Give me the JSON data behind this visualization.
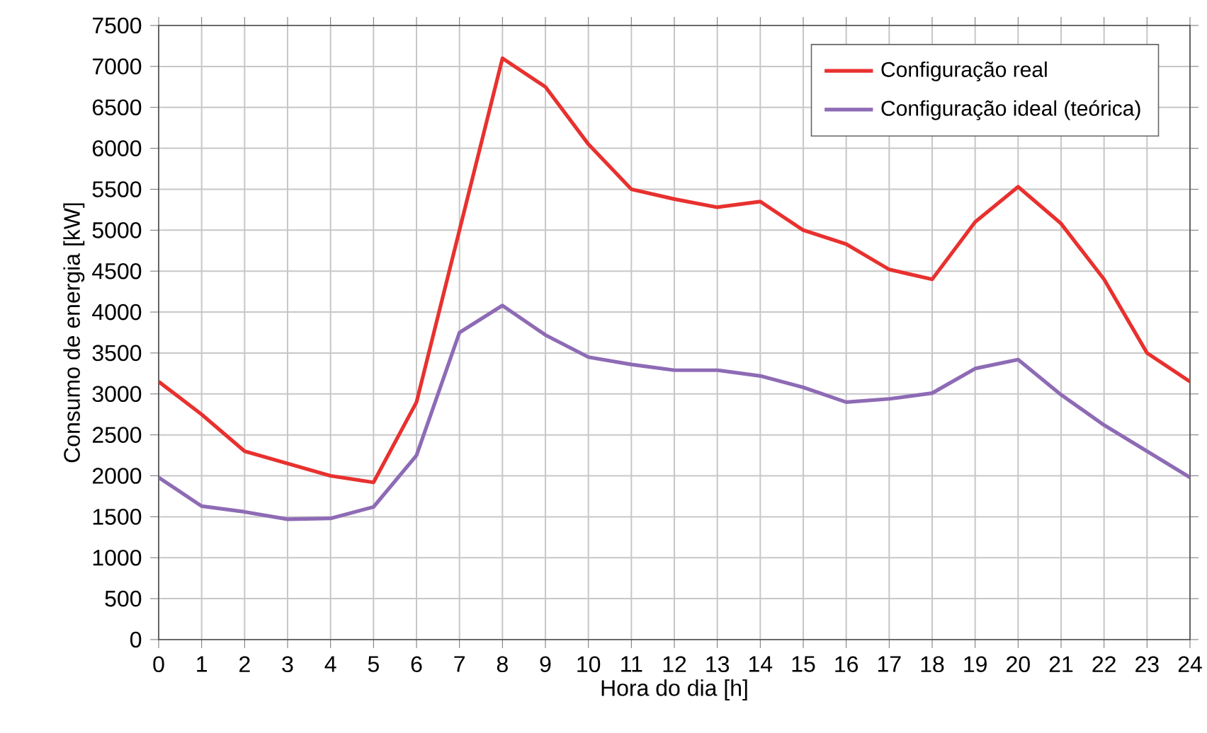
{
  "chart_data": {
    "type": "line",
    "xlabel": "Hora do dia [h]",
    "ylabel": "Consumo de energia [kW]",
    "x": [
      0,
      1,
      2,
      3,
      4,
      5,
      6,
      7,
      8,
      9,
      10,
      11,
      12,
      13,
      14,
      15,
      16,
      17,
      18,
      19,
      20,
      21,
      22,
      23,
      24
    ],
    "series": [
      {
        "name": "Configuração real",
        "color": "#e8312f",
        "values": [
          3150,
          2750,
          2300,
          2150,
          2000,
          1920,
          2900,
          5000,
          7100,
          6750,
          6050,
          5500,
          5380,
          5280,
          5350,
          5000,
          4830,
          4520,
          4400,
          5100,
          5530,
          5080,
          4400,
          3500,
          3150
        ]
      },
      {
        "name": "Configuração ideal (teórica)",
        "color": "#8e6bb5",
        "values": [
          1980,
          1630,
          1560,
          1470,
          1480,
          1620,
          2250,
          3750,
          4080,
          3720,
          3450,
          3360,
          3290,
          3290,
          3220,
          3080,
          2900,
          2940,
          3010,
          3310,
          3420,
          2990,
          2620,
          2300,
          1980
        ]
      }
    ],
    "xlim": [
      0,
      24
    ],
    "ylim": [
      0,
      7500
    ],
    "xticks": [
      0,
      1,
      2,
      3,
      4,
      5,
      6,
      7,
      8,
      9,
      10,
      11,
      12,
      13,
      14,
      15,
      16,
      17,
      18,
      19,
      20,
      21,
      22,
      23,
      24
    ],
    "yticks": [
      0,
      500,
      1000,
      1500,
      2000,
      2500,
      3000,
      3500,
      4000,
      4500,
      5000,
      5500,
      6000,
      6500,
      7000,
      7500
    ],
    "grid": true,
    "legend": "top right",
    "marker": "none",
    "line_style": "solid"
  }
}
